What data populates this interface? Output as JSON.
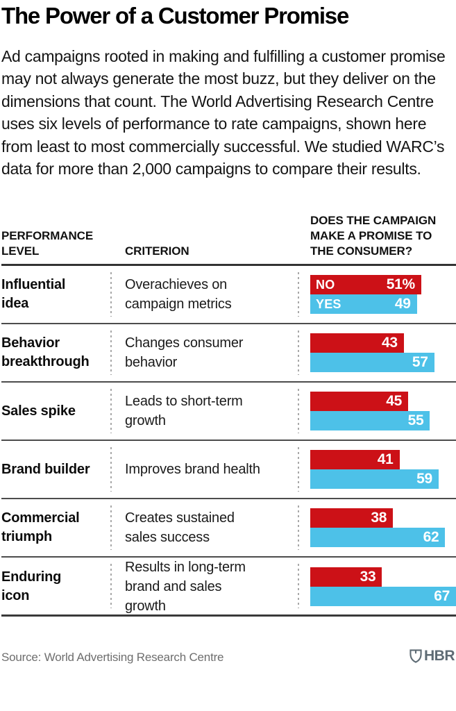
{
  "title": "The Power of a Customer Promise",
  "intro": "Ad campaigns rooted in making and fulfilling a customer promise may not always generate the most buzz, but they deliver on the dimensions that count. The World Advertising Research Centre uses six levels of performance to rate campaigns, shown here from least to most commercially successful. We studied WARC’s data for more than 2,000 campaigns to compare their results.",
  "columns": {
    "performance_level": "PERFORMANCE LEVEL",
    "criterion": "CRITERION",
    "promise": "DOES THE CAMPAIGN MAKE A PROMISE TO THE CONSUMER?"
  },
  "colors": {
    "no": "#cc1117",
    "yes": "#4dc1e8",
    "logo": "#5e6b74"
  },
  "chart_data": {
    "type": "bar",
    "orientation": "horizontal",
    "title": "The Power of a Customer Promise",
    "categories": [
      "Influential idea",
      "Behavior breakthrough",
      "Sales spike",
      "Brand builder",
      "Commercial triumph",
      "Enduring icon"
    ],
    "criteria": [
      "Overachieves on campaign metrics",
      "Changes consumer behavior",
      "Leads to short-term growth",
      "Improves brand health",
      "Creates sustained sales success",
      "Results in long-term brand and sales growth"
    ],
    "series": [
      {
        "name": "NO",
        "color": "#cc1117",
        "values": [
          51,
          43,
          45,
          41,
          38,
          33
        ]
      },
      {
        "name": "YES",
        "color": "#4dc1e8",
        "values": [
          49,
          57,
          55,
          59,
          62,
          67
        ]
      }
    ],
    "unit": "%",
    "scale_max": 67,
    "grid": false,
    "legend_position": "inline-first-row"
  },
  "rows": [
    {
      "level": "Influential idea",
      "criterion": "Overachieves on campaign metrics",
      "no": 51,
      "yes": 49,
      "no_label": "NO",
      "yes_label": "YES",
      "no_text": "51%",
      "yes_text": "49"
    },
    {
      "level": "Behavior breakthrough",
      "criterion": "Changes consumer behavior",
      "no": 43,
      "yes": 57,
      "no_text": "43",
      "yes_text": "57"
    },
    {
      "level": "Sales spike",
      "criterion": "Leads to short-term growth",
      "no": 45,
      "yes": 55,
      "no_text": "45",
      "yes_text": "55"
    },
    {
      "level": "Brand builder",
      "criterion": "Improves brand health",
      "no": 41,
      "yes": 59,
      "no_text": "41",
      "yes_text": "59"
    },
    {
      "level": "Commercial triumph",
      "criterion": "Creates sustained sales success",
      "no": 38,
      "yes": 62,
      "no_text": "38",
      "yes_text": "62"
    },
    {
      "level": "Enduring icon",
      "criterion": "Results in long-term brand and sales growth",
      "no": 33,
      "yes": 67,
      "no_text": "33",
      "yes_text": "67"
    }
  ],
  "footer": {
    "source": "Source: World Advertising Research Centre",
    "logo": "HBR"
  }
}
